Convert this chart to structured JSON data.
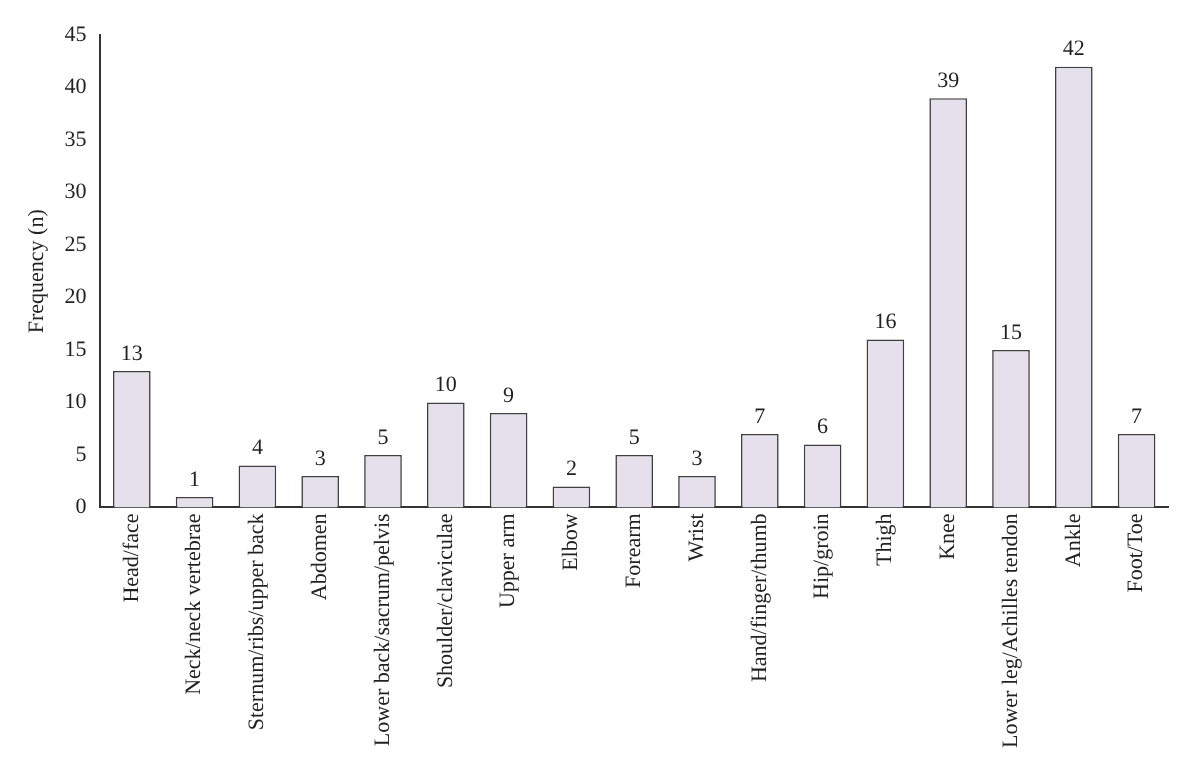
{
  "chart_data": {
    "type": "bar",
    "ylabel": "Frequency (n)",
    "categories": [
      "Head/face",
      "Neck/neck vertebrae",
      "Sternum/ribs/upper back",
      "Abdomen",
      "Lower back/sacrum/pelvis",
      "Shoulder/claviculae",
      "Upper arm",
      "Elbow",
      "Forearm",
      "Wrist",
      "Hand/finger/thumb",
      "Hip/groin",
      "Thigh",
      "Knee",
      "Lower leg/Achilles tendon",
      "Ankle",
      "Foot/Toe"
    ],
    "values": [
      13,
      1,
      4,
      3,
      5,
      10,
      9,
      2,
      5,
      3,
      7,
      6,
      16,
      39,
      15,
      42,
      7
    ],
    "color": "#e6e0ec",
    "ylim": [
      0,
      45
    ],
    "yticks": [
      0,
      5,
      10,
      15,
      20,
      25,
      30,
      35,
      40,
      45
    ],
    "grid": false,
    "legend": false,
    "data_labels": true
  }
}
